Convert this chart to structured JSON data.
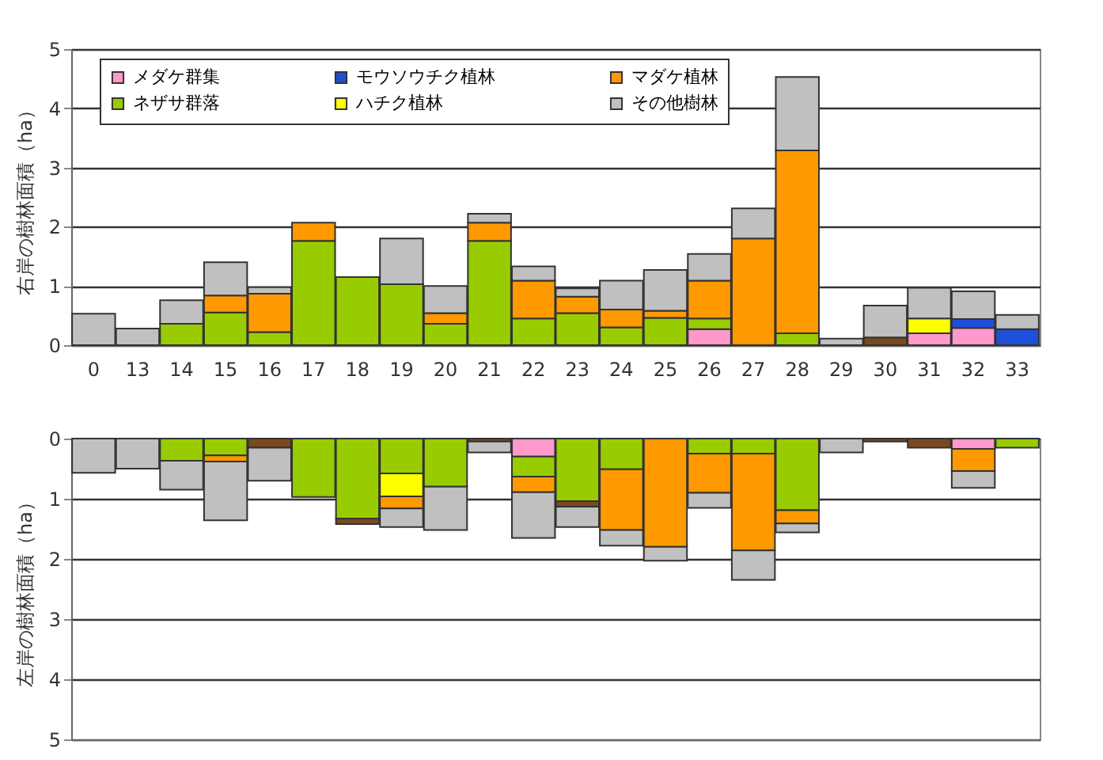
{
  "chart_data": [
    {
      "type": "bar",
      "stacked": true,
      "ylabel": "右岸の樹林面積（ha）",
      "categories": [
        "0",
        "13",
        "14",
        "15",
        "16",
        "17",
        "18",
        "19",
        "20",
        "21",
        "22",
        "23",
        "24",
        "25",
        "26",
        "27",
        "28",
        "29",
        "30",
        "31",
        "32",
        "33"
      ],
      "ylim": [
        0,
        5
      ],
      "yticks": [
        0,
        1,
        2,
        3,
        4,
        5
      ],
      "grid": "y",
      "legend": "top",
      "series": [
        {
          "name": "メダケ群集",
          "color": "#ff99cc",
          "values": [
            null,
            null,
            null,
            null,
            null,
            null,
            null,
            null,
            null,
            null,
            null,
            null,
            null,
            null,
            0.27,
            null,
            null,
            null,
            null,
            0.2,
            0.29,
            null
          ]
        },
        {
          "name": "ネザサ群落",
          "color": "#99cc00",
          "values": [
            null,
            null,
            0.36,
            0.55,
            0.22,
            1.76,
            1.15,
            1.03,
            0.36,
            1.76,
            0.45,
            0.54,
            0.3,
            0.46,
            0.18,
            null,
            0.2,
            null,
            null,
            null,
            null,
            null
          ]
        },
        {
          "name": "モウソウチク植林",
          "color": "#1f4fd8",
          "values": [
            null,
            null,
            null,
            null,
            null,
            null,
            null,
            null,
            null,
            null,
            null,
            null,
            null,
            null,
            null,
            null,
            null,
            null,
            null,
            null,
            0.15,
            0.27
          ]
        },
        {
          "name": "ハチク植林",
          "color": "#ffff00",
          "values": [
            null,
            null,
            null,
            null,
            null,
            null,
            null,
            null,
            null,
            null,
            null,
            null,
            null,
            null,
            null,
            null,
            null,
            null,
            null,
            0.25,
            null,
            null
          ]
        },
        {
          "name": "マダケ植林",
          "color": "#ff9900",
          "values": [
            null,
            null,
            null,
            0.29,
            0.65,
            0.31,
            null,
            null,
            0.18,
            0.31,
            0.64,
            0.28,
            0.3,
            0.12,
            0.64,
            1.8,
            3.09,
            null,
            null,
            null,
            null,
            null
          ]
        },
        {
          "color": "#7a4a1f",
          "values": [
            null,
            null,
            null,
            null,
            null,
            null,
            null,
            null,
            null,
            null,
            null,
            null,
            null,
            null,
            null,
            null,
            null,
            null,
            0.13,
            null,
            null,
            null
          ]
        },
        {
          "name": "その他樹林",
          "color": "#c0c0c0",
          "values": [
            0.53,
            0.28,
            0.4,
            0.56,
            0.11,
            null,
            null,
            0.77,
            0.46,
            0.15,
            0.24,
            0.14,
            0.49,
            0.69,
            0.45,
            0.51,
            1.24,
            0.11,
            0.54,
            0.52,
            0.47,
            0.24
          ]
        }
      ]
    },
    {
      "type": "bar",
      "stacked": true,
      "ylabel": "左岸の樹林面積（ha）",
      "categories": [
        "0",
        "13",
        "14",
        "15",
        "16",
        "17",
        "18",
        "19",
        "20",
        "21",
        "22",
        "23",
        "24",
        "25",
        "26",
        "27",
        "28",
        "29",
        "30",
        "31",
        "32",
        "33"
      ],
      "ylim": [
        5,
        0
      ],
      "yticks": [
        0,
        1,
        2,
        3,
        4,
        5
      ],
      "grid": "y",
      "tick_labels": "y",
      "series": [
        {
          "name": "メダケ群集",
          "color": "#ff99cc",
          "values": [
            null,
            null,
            null,
            null,
            null,
            null,
            null,
            null,
            null,
            null,
            0.3,
            null,
            null,
            null,
            null,
            null,
            null,
            null,
            null,
            null,
            0.17,
            null
          ]
        },
        {
          "name": "ネザサ群落",
          "color": "#99cc00",
          "values": [
            null,
            null,
            0.37,
            0.28,
            null,
            0.97,
            1.33,
            0.58,
            0.8,
            null,
            0.33,
            1.04,
            0.51,
            null,
            0.25,
            0.25,
            1.19,
            null,
            null,
            null,
            null,
            0.15
          ]
        },
        {
          "name": "モウソウチク植林",
          "color": "#1f4fd8",
          "values": [
            null,
            null,
            null,
            null,
            null,
            null,
            null,
            null,
            null,
            null,
            null,
            null,
            null,
            null,
            null,
            null,
            null,
            null,
            null,
            null,
            null,
            null
          ]
        },
        {
          "name": "ハチク植林",
          "color": "#ffff00",
          "values": [
            null,
            null,
            null,
            null,
            null,
            null,
            null,
            0.38,
            null,
            null,
            null,
            null,
            null,
            null,
            null,
            null,
            null,
            null,
            null,
            null,
            null,
            null
          ]
        },
        {
          "name": "マダケ植林",
          "color": "#ff9900",
          "values": [
            null,
            null,
            null,
            0.1,
            null,
            null,
            null,
            0.2,
            null,
            null,
            0.26,
            null,
            1.01,
            1.8,
            0.65,
            1.61,
            0.22,
            null,
            null,
            null,
            0.37,
            null
          ]
        },
        {
          "color": "#7a4a1f",
          "values": [
            null,
            null,
            null,
            null,
            0.15,
            null,
            0.09,
            null,
            null,
            0.05,
            null,
            0.09,
            null,
            null,
            null,
            null,
            null,
            null,
            0.05,
            0.15,
            null,
            null
          ]
        },
        {
          "name": "その他樹林",
          "color": "#c0c0c0",
          "values": [
            0.57,
            0.5,
            0.48,
            0.98,
            0.55,
            null,
            null,
            0.31,
            0.72,
            0.18,
            0.76,
            0.34,
            0.26,
            0.23,
            0.25,
            0.49,
            0.15,
            0.23,
            null,
            null,
            0.28,
            null
          ]
        }
      ]
    }
  ]
}
